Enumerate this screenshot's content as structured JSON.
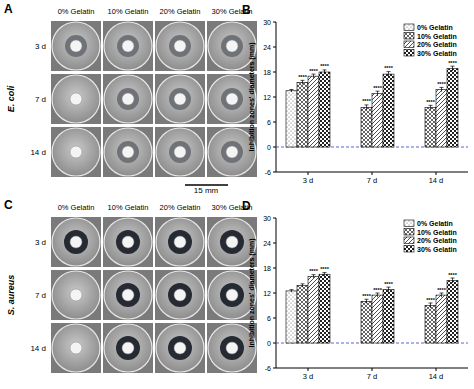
{
  "photo_panels": [
    {
      "panel_label": "A",
      "organism": "E. coli",
      "columns": [
        "0% Gelatin",
        "10% Gelatin",
        "20% Gelatin",
        "30% Gelatin"
      ],
      "rows": [
        "3 d",
        "7 d",
        "14 d"
      ],
      "scale_bar": "15 mm"
    },
    {
      "panel_label": "C",
      "organism": "S. aureus",
      "columns": [
        "0% Gelatin",
        "10% Gelatin",
        "20% Gelatin",
        "30% Gelatin"
      ],
      "rows": [
        "3 d",
        "7 d",
        "14 d"
      ]
    }
  ],
  "chart_data": [
    {
      "type": "bar",
      "panel_label": "B",
      "y_label": "Inhibition zones' diameters (mm)",
      "categories": [
        "3 d",
        "7 d",
        "14 d"
      ],
      "ylim": [
        -6,
        30
      ],
      "yticks": [
        -6,
        0,
        6,
        12,
        18,
        24,
        30
      ],
      "baseline": 0,
      "legend": "top-right",
      "series": [
        {
          "name": "0% Gelatin",
          "color": "#ffffff",
          "marker": "dots",
          "values": [
            13.5,
            0,
            0
          ],
          "errors": [
            0.3,
            0,
            0
          ],
          "stars": [
            null,
            null,
            null
          ]
        },
        {
          "name": "10% Gelatin",
          "color": "#ffffff",
          "marker": "crosshatch",
          "values": [
            15.5,
            9.5,
            9.5
          ],
          "errors": [
            0.5,
            0.6,
            0.5
          ],
          "stars": [
            "****",
            "****",
            "****"
          ]
        },
        {
          "name": "20% Gelatin",
          "color": "#ffffff",
          "marker": "hatch",
          "values": [
            17,
            12.8,
            13.8
          ],
          "errors": [
            0.5,
            0.6,
            0.5
          ],
          "stars": [
            "****",
            "****",
            "****"
          ]
        },
        {
          "name": "30% Gelatin",
          "color": "#ffffff",
          "marker": "checker",
          "values": [
            18,
            17.5,
            18.8
          ],
          "errors": [
            0.5,
            0.6,
            0.6
          ],
          "stars": [
            "****",
            "****",
            "****"
          ]
        }
      ]
    },
    {
      "type": "bar",
      "panel_label": "D",
      "y_label": "Inhibition zones' diameters (mm)",
      "categories": [
        "3 d",
        "7 d",
        "14 d"
      ],
      "ylim": [
        -6,
        30
      ],
      "yticks": [
        -6,
        0,
        6,
        12,
        18,
        24,
        30
      ],
      "baseline": 0,
      "legend": "top-right",
      "series": [
        {
          "name": "0% Gelatin",
          "color": "#ffffff",
          "marker": "dots",
          "values": [
            12.5,
            0,
            0
          ],
          "errors": [
            0.3,
            0,
            0
          ],
          "stars": [
            null,
            null,
            null
          ]
        },
        {
          "name": "10% Gelatin",
          "color": "#ffffff",
          "marker": "crosshatch",
          "values": [
            13.8,
            10,
            9
          ],
          "errors": [
            0.4,
            0.5,
            0.6
          ],
          "stars": [
            null,
            "****",
            "****"
          ]
        },
        {
          "name": "20% Gelatin",
          "color": "#ffffff",
          "marker": "hatch",
          "values": [
            16,
            11.5,
            11.5
          ],
          "errors": [
            0.4,
            0.5,
            0.5
          ],
          "stars": [
            "****",
            "****",
            "****"
          ]
        },
        {
          "name": "30% Gelatin",
          "color": "#ffffff",
          "marker": "checker",
          "values": [
            16.5,
            12.8,
            15
          ],
          "errors": [
            0.4,
            0.6,
            0.6
          ],
          "stars": [
            "****",
            "****",
            "****"
          ]
        }
      ]
    }
  ]
}
